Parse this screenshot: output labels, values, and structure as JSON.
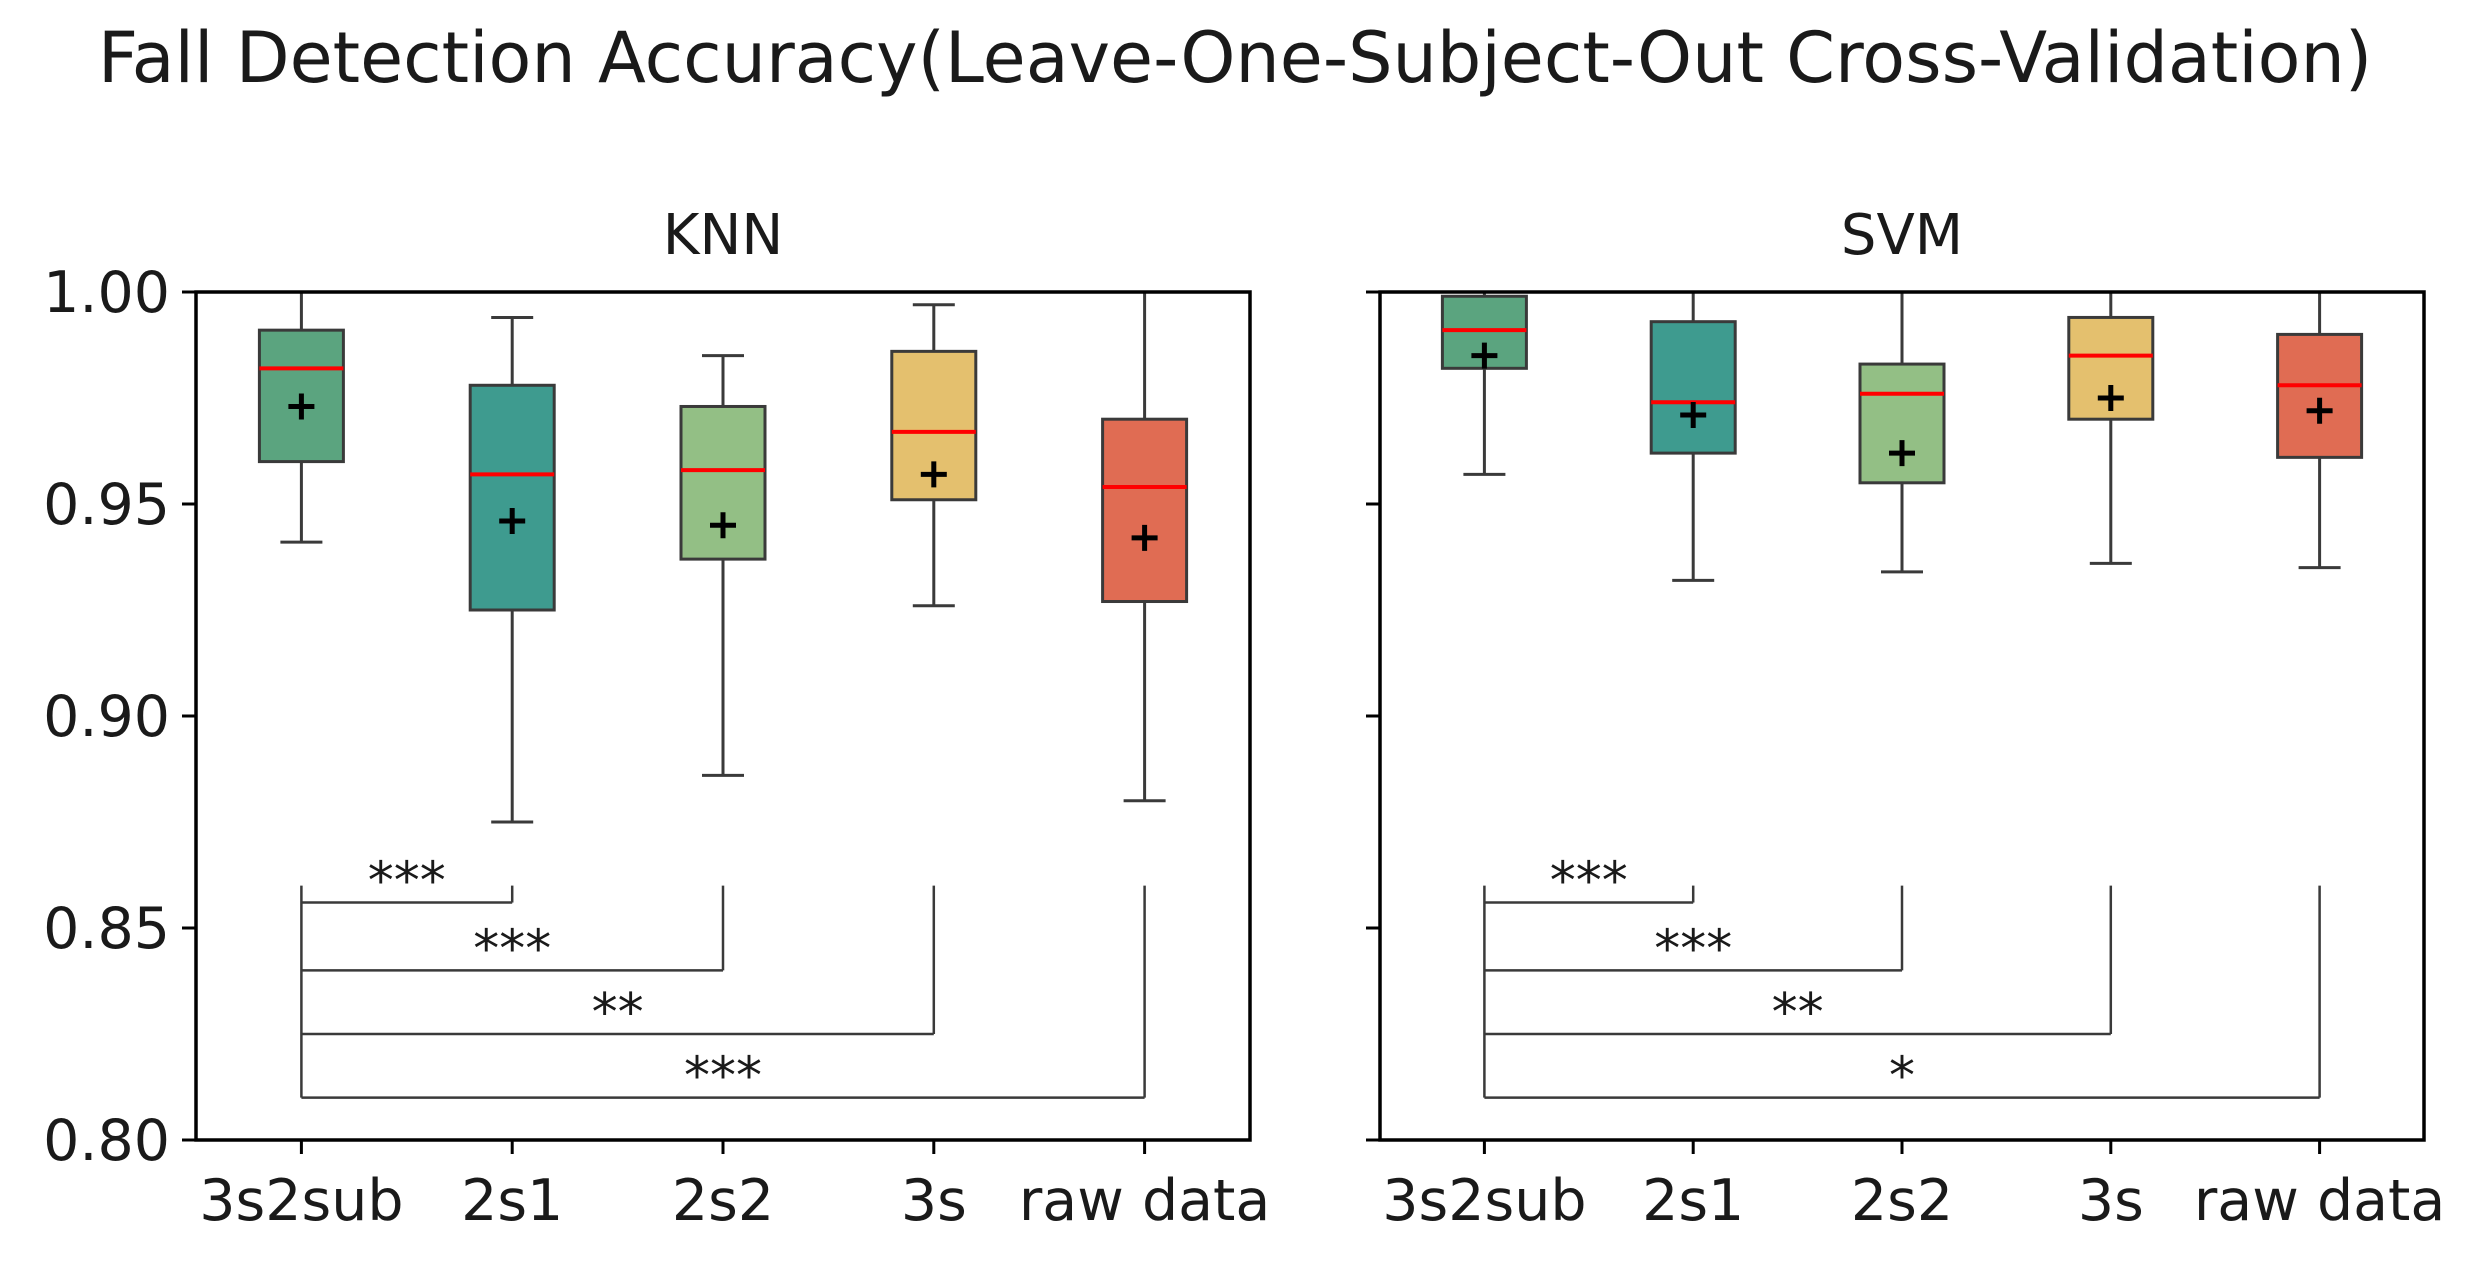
{
  "title": "Fall Detection Accuracy(Leave-One-Subject-Out Cross-Validation)",
  "colors": {
    "boxes": [
      "#5ba47f",
      "#3e9b8f",
      "#93bf85",
      "#e4c06e",
      "#e06c53"
    ],
    "median": "#ff0000",
    "axis": "#000000",
    "whisker": "#3a3a3a"
  },
  "chart_data": [
    {
      "type": "box",
      "title": "KNN",
      "categories": [
        "3s2sub",
        "2s1",
        "2s2",
        "3s",
        "raw data"
      ],
      "ylim": [
        0.8,
        1.0
      ],
      "yticks": [
        "0.80",
        "0.85",
        "0.90",
        "0.95",
        "1.00"
      ],
      "boxes": [
        {
          "whislo": 0.941,
          "q1": 0.96,
          "med": 0.982,
          "q3": 0.991,
          "whishi": 1.0,
          "mean": 0.973
        },
        {
          "whislo": 0.875,
          "q1": 0.925,
          "med": 0.957,
          "q3": 0.978,
          "whishi": 0.994,
          "mean": 0.946
        },
        {
          "whislo": 0.886,
          "q1": 0.937,
          "med": 0.958,
          "q3": 0.973,
          "whishi": 0.985,
          "mean": 0.945
        },
        {
          "whislo": 0.926,
          "q1": 0.951,
          "med": 0.967,
          "q3": 0.986,
          "whishi": 0.997,
          "mean": 0.957
        },
        {
          "whislo": 0.88,
          "q1": 0.927,
          "med": 0.954,
          "q3": 0.97,
          "whishi": 1.0,
          "mean": 0.942
        }
      ],
      "significance": [
        {
          "from": 0,
          "to": 1,
          "label": "***"
        },
        {
          "from": 0,
          "to": 2,
          "label": "***"
        },
        {
          "from": 0,
          "to": 3,
          "label": "**"
        },
        {
          "from": 0,
          "to": 4,
          "label": "***"
        }
      ]
    },
    {
      "type": "box",
      "title": "SVM",
      "categories": [
        "3s2sub",
        "2s1",
        "2s2",
        "3s",
        "raw data"
      ],
      "ylim": [
        0.8,
        1.0
      ],
      "yticks": [
        "0.80",
        "0.85",
        "0.90",
        "0.95",
        "1.00"
      ],
      "boxes": [
        {
          "whislo": 0.957,
          "q1": 0.982,
          "med": 0.991,
          "q3": 0.999,
          "whishi": 1.0,
          "mean": 0.985
        },
        {
          "whislo": 0.932,
          "q1": 0.962,
          "med": 0.974,
          "q3": 0.993,
          "whishi": 1.0,
          "mean": 0.971
        },
        {
          "whislo": 0.934,
          "q1": 0.955,
          "med": 0.976,
          "q3": 0.983,
          "whishi": 1.0,
          "mean": 0.962
        },
        {
          "whislo": 0.936,
          "q1": 0.97,
          "med": 0.985,
          "q3": 0.994,
          "whishi": 1.0,
          "mean": 0.975
        },
        {
          "whislo": 0.935,
          "q1": 0.961,
          "med": 0.978,
          "q3": 0.99,
          "whishi": 1.0,
          "mean": 0.972
        }
      ],
      "significance": [
        {
          "from": 0,
          "to": 1,
          "label": "***"
        },
        {
          "from": 0,
          "to": 2,
          "label": "***"
        },
        {
          "from": 0,
          "to": 3,
          "label": "**"
        },
        {
          "from": 0,
          "to": 4,
          "label": "*"
        }
      ]
    }
  ]
}
